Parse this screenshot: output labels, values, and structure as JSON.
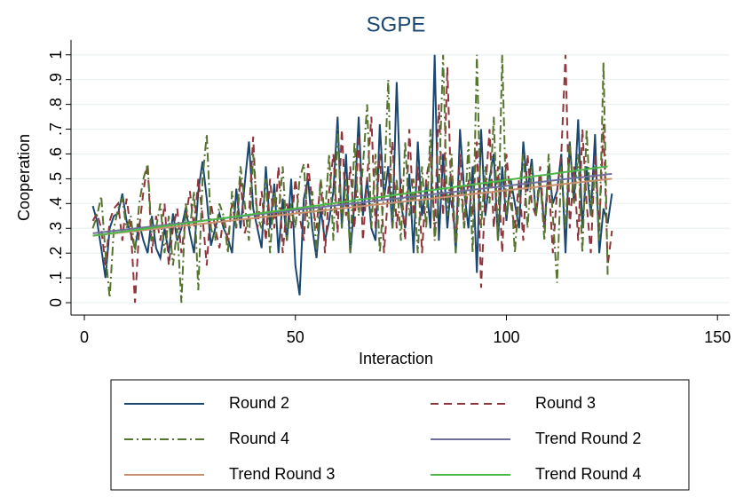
{
  "chart_data": {
    "type": "line",
    "title": "SGPE",
    "xlabel": "Interaction",
    "ylabel": "Cooperation",
    "xlim": [
      -3.16,
      152.9
    ],
    "ylim": [
      -0.05,
      1.06
    ],
    "xticks": [
      0,
      50,
      100,
      150
    ],
    "yticks": [
      0,
      {
        "value": 0.1,
        "label": ".1"
      },
      {
        "value": 0.2,
        "label": ".2"
      },
      {
        "value": 0.3,
        "label": ".3"
      },
      {
        "value": 0.4,
        "label": ".4"
      },
      {
        "value": 0.5,
        "label": ".5"
      },
      {
        "value": 0.6,
        "label": ".6"
      },
      {
        "value": 0.7,
        "label": ".7"
      },
      {
        "value": 0.8,
        "label": ".8"
      },
      {
        "value": 0.9,
        "label": ".9"
      },
      1
    ],
    "grid": true,
    "legend": "bottom",
    "x": [
      2,
      3,
      4,
      5,
      6,
      7,
      8,
      9,
      10,
      11,
      12,
      13,
      14,
      15,
      16,
      17,
      18,
      19,
      20,
      21,
      22,
      23,
      24,
      25,
      26,
      27,
      28,
      29,
      30,
      31,
      32,
      33,
      34,
      35,
      36,
      37,
      38,
      39,
      40,
      41,
      42,
      43,
      44,
      45,
      46,
      47,
      48,
      49,
      50,
      51,
      52,
      53,
      54,
      55,
      56,
      57,
      58,
      59,
      60,
      61,
      62,
      63,
      64,
      65,
      66,
      67,
      68,
      69,
      70,
      71,
      72,
      73,
      74,
      75,
      76,
      77,
      78,
      79,
      80,
      81,
      82,
      83,
      84,
      85,
      86,
      87,
      88,
      89,
      90,
      91,
      92,
      93,
      94,
      95,
      96,
      97,
      98,
      99,
      100,
      101,
      102,
      103,
      104,
      105,
      106,
      107,
      108,
      109,
      110,
      111,
      112,
      113,
      114,
      115,
      116,
      117,
      118,
      119,
      120,
      121,
      122,
      123,
      124,
      125
    ],
    "series": [
      {
        "name": "Round 2",
        "color": "#1a476f",
        "style": "solid",
        "values": [
          0.39,
          0.33,
          0.22,
          0.1,
          0.3,
          0.35,
          0.36,
          0.44,
          0.33,
          0.28,
          0.22,
          0.32,
          0.25,
          0.2,
          0.35,
          0.22,
          0.18,
          0.3,
          0.2,
          0.36,
          0.25,
          0.3,
          0.38,
          0.28,
          0.2,
          0.45,
          0.57,
          0.42,
          0.23,
          0.3,
          0.36,
          0.3,
          0.26,
          0.2,
          0.46,
          0.3,
          0.48,
          0.65,
          0.38,
          0.3,
          0.22,
          0.55,
          0.3,
          0.48,
          0.2,
          0.42,
          0.25,
          0.5,
          0.15,
          0.03,
          0.42,
          0.5,
          0.3,
          0.18,
          0.38,
          0.25,
          0.33,
          0.45,
          0.75,
          0.3,
          0.6,
          0.2,
          0.4,
          0.75,
          0.35,
          0.5,
          0.3,
          0.25,
          0.72,
          0.42,
          0.55,
          0.3,
          0.89,
          0.4,
          0.3,
          0.52,
          0.2,
          0.65,
          0.35,
          0.48,
          0.3,
          1.0,
          0.25,
          0.6,
          0.3,
          0.5,
          0.2,
          0.7,
          0.45,
          0.3,
          0.55,
          0.12,
          0.7,
          0.35,
          0.5,
          0.6,
          0.25,
          0.55,
          0.33,
          0.5,
          0.4,
          0.3,
          0.65,
          0.45,
          0.58,
          0.35,
          0.5,
          0.3,
          0.55,
          0.4,
          0.45,
          0.6,
          0.2,
          0.65,
          0.4,
          0.74,
          0.3,
          0.55,
          0.35,
          0.68,
          0.2,
          0.38,
          0.32,
          0.44
        ]
      },
      {
        "name": "Round 3",
        "color": "#90353b",
        "style": "dash",
        "values": [
          0.33,
          0.36,
          0.3,
          0.15,
          0.33,
          0.38,
          0.4,
          0.25,
          0.42,
          0.3,
          0.0,
          0.3,
          0.45,
          0.56,
          0.2,
          0.35,
          0.25,
          0.4,
          0.15,
          0.3,
          0.38,
          0.2,
          0.34,
          0.45,
          0.3,
          0.5,
          0.35,
          0.15,
          0.4,
          0.3,
          0.22,
          0.35,
          0.25,
          0.4,
          0.3,
          0.5,
          0.28,
          0.35,
          0.67,
          0.3,
          0.45,
          0.25,
          0.5,
          0.3,
          0.55,
          0.2,
          0.4,
          0.3,
          0.5,
          0.35,
          0.25,
          0.56,
          0.4,
          0.3,
          0.5,
          0.2,
          0.45,
          0.6,
          0.28,
          0.7,
          0.35,
          0.55,
          0.3,
          0.68,
          0.25,
          0.5,
          0.75,
          0.3,
          0.6,
          0.2,
          0.45,
          0.65,
          0.3,
          0.5,
          0.25,
          0.7,
          0.35,
          0.55,
          0.2,
          0.5,
          0.6,
          0.3,
          0.8,
          0.35,
          0.95,
          0.4,
          0.25,
          0.6,
          0.3,
          0.5,
          0.35,
          0.65,
          0.06,
          0.45,
          0.7,
          0.3,
          0.55,
          0.2,
          0.6,
          0.4,
          0.3,
          0.5,
          0.25,
          0.6,
          0.4,
          0.35,
          0.55,
          0.3,
          0.5,
          0.2,
          0.45,
          0.6,
          1.0,
          0.3,
          0.55,
          0.25,
          0.7,
          0.4,
          0.2,
          0.6,
          0.3,
          0.72,
          0.15,
          0.29
        ]
      },
      {
        "name": "Round 4",
        "color": "#55752f",
        "style": "dashdot",
        "values": [
          0.3,
          0.35,
          0.43,
          0.2,
          0.02,
          0.3,
          0.38,
          0.42,
          0.3,
          0.35,
          0.2,
          0.4,
          0.5,
          0.56,
          0.25,
          0.3,
          0.4,
          0.2,
          0.35,
          0.15,
          0.3,
          0.0,
          0.4,
          0.3,
          0.45,
          0.05,
          0.5,
          0.68,
          0.3,
          0.25,
          0.4,
          0.35,
          0.2,
          0.45,
          0.3,
          0.55,
          0.4,
          0.25,
          0.6,
          0.35,
          0.3,
          0.5,
          0.2,
          0.45,
          0.35,
          0.55,
          0.25,
          0.4,
          0.3,
          0.5,
          0.56,
          0.3,
          0.45,
          0.2,
          0.5,
          0.35,
          0.6,
          0.25,
          0.7,
          0.3,
          0.5,
          0.2,
          0.65,
          0.35,
          0.55,
          0.8,
          0.3,
          0.6,
          0.2,
          0.45,
          0.9,
          0.3,
          0.5,
          0.25,
          0.65,
          0.35,
          0.5,
          0.2,
          0.55,
          0.3,
          0.7,
          0.25,
          0.45,
          1.0,
          0.35,
          0.6,
          0.2,
          0.5,
          0.3,
          0.65,
          0.2,
          1.0,
          0.3,
          0.55,
          0.4,
          0.75,
          0.25,
          1.0,
          0.35,
          0.5,
          0.2,
          0.45,
          0.6,
          0.3,
          0.55,
          0.35,
          0.5,
          0.25,
          0.6,
          0.35,
          0.08,
          0.55,
          0.3,
          0.65,
          0.4,
          0.6,
          0.2,
          0.7,
          0.35,
          0.55,
          0.25,
          0.97,
          0.1,
          null
        ]
      },
      {
        "name": "Trend Round 2",
        "color": "#6f6f9e",
        "style": "solid",
        "x": [
          2,
          125
        ],
        "values": [
          0.28,
          0.52
        ]
      },
      {
        "name": "Trend Round 3",
        "color": "#c8906e",
        "style": "solid",
        "x": [
          2,
          125
        ],
        "values": [
          0.27,
          0.5
        ]
      },
      {
        "name": "Trend Round 4",
        "color": "#4cb848",
        "style": "solid",
        "x": [
          2,
          124
        ],
        "values": [
          0.27,
          0.55
        ]
      }
    ]
  }
}
